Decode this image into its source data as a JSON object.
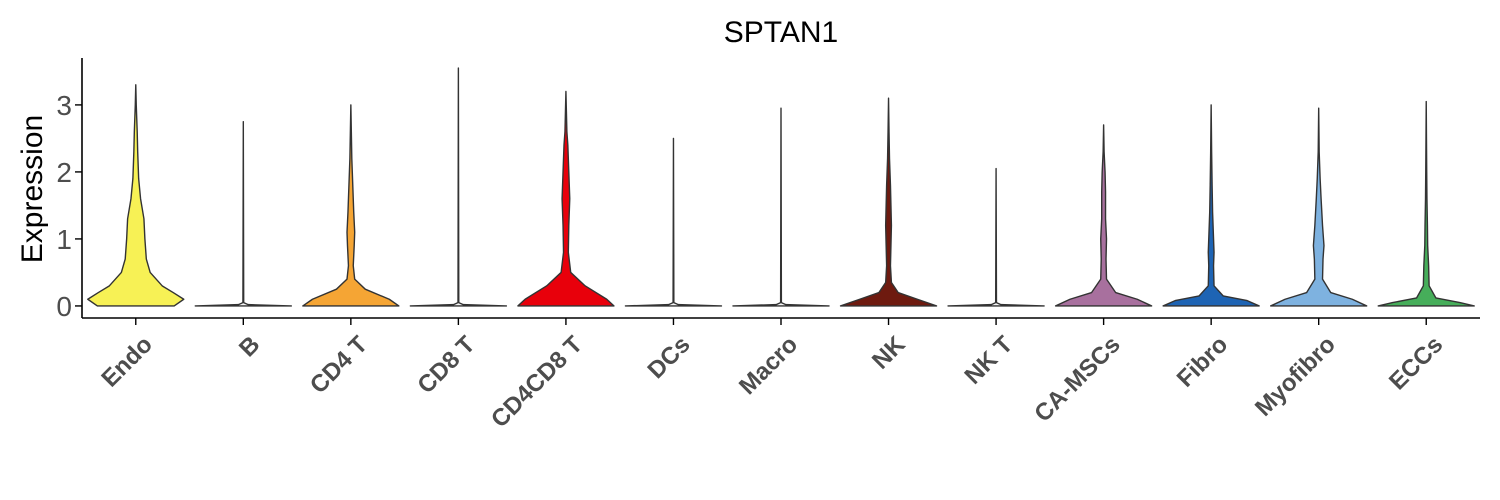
{
  "chart_data": {
    "type": "violin",
    "title": "SPTAN1",
    "xlabel": "",
    "ylabel": "Expression",
    "ylim": [
      -0.18,
      3.7
    ],
    "yticks": [
      0,
      1,
      2,
      3
    ],
    "grid": false,
    "legend": "none",
    "categories": [
      "Endo",
      "B",
      "CD4 T",
      "CD8 T",
      "CD4CD8 T",
      "DCs",
      "Macro",
      "NK",
      "NK T",
      "CA-MSCs",
      "Fibro",
      "Myofibro",
      "ECCs"
    ],
    "colors": [
      "#F7F155",
      "#F4F4F4",
      "#F5A534",
      "#F4F4F4",
      "#E8000B",
      "#F4F4F4",
      "#F4F4F4",
      "#6E1A0F",
      "#F4F4F4",
      "#A8709E",
      "#1E64B4",
      "#7EB2E0",
      "#46AE5A"
    ],
    "series": [
      {
        "category": "Endo",
        "max": 3.3,
        "profile": [
          [
            0,
            0.8
          ],
          [
            0.1,
            1.0
          ],
          [
            0.2,
            0.78
          ],
          [
            0.3,
            0.55
          ],
          [
            0.5,
            0.3
          ],
          [
            0.7,
            0.22
          ],
          [
            1.0,
            0.19
          ],
          [
            1.3,
            0.17
          ],
          [
            1.6,
            0.1
          ],
          [
            1.9,
            0.06
          ],
          [
            2.3,
            0.04
          ],
          [
            2.6,
            0.03
          ],
          [
            2.8,
            0.02
          ],
          [
            3.0,
            0.01
          ],
          [
            3.3,
            0
          ]
        ]
      },
      {
        "category": "B",
        "max": 2.75,
        "profile": [
          [
            0,
            1.0
          ],
          [
            0.02,
            0.1
          ],
          [
            0.05,
            0.008
          ],
          [
            2.75,
            0
          ]
        ]
      },
      {
        "category": "CD4 T",
        "max": 3.0,
        "profile": [
          [
            0,
            1.0
          ],
          [
            0.1,
            0.8
          ],
          [
            0.25,
            0.3
          ],
          [
            0.4,
            0.08
          ],
          [
            0.6,
            0.05
          ],
          [
            0.9,
            0.07
          ],
          [
            1.1,
            0.08
          ],
          [
            1.4,
            0.06
          ],
          [
            1.8,
            0.04
          ],
          [
            2.2,
            0.02
          ],
          [
            2.6,
            0.01
          ],
          [
            3.0,
            0
          ]
        ]
      },
      {
        "category": "CD8 T",
        "max": 3.55,
        "profile": [
          [
            0,
            1.0
          ],
          [
            0.02,
            0.1
          ],
          [
            0.05,
            0.008
          ],
          [
            3.55,
            0
          ]
        ]
      },
      {
        "category": "CD4CD8 T",
        "max": 3.2,
        "profile": [
          [
            0,
            1.0
          ],
          [
            0.1,
            0.85
          ],
          [
            0.3,
            0.4
          ],
          [
            0.5,
            0.1
          ],
          [
            0.8,
            0.05
          ],
          [
            1.2,
            0.06
          ],
          [
            1.6,
            0.08
          ],
          [
            2.0,
            0.06
          ],
          [
            2.4,
            0.04
          ],
          [
            2.6,
            0.02
          ],
          [
            2.9,
            0.01
          ],
          [
            3.2,
            0
          ]
        ]
      },
      {
        "category": "DCs",
        "max": 2.5,
        "profile": [
          [
            0,
            1.0
          ],
          [
            0.02,
            0.1
          ],
          [
            0.05,
            0.008
          ],
          [
            2.5,
            0
          ]
        ]
      },
      {
        "category": "Macro",
        "max": 2.95,
        "profile": [
          [
            0,
            1.0
          ],
          [
            0.02,
            0.1
          ],
          [
            0.05,
            0.008
          ],
          [
            2.95,
            0
          ]
        ]
      },
      {
        "category": "NK",
        "max": 3.1,
        "profile": [
          [
            0,
            1.0
          ],
          [
            0.1,
            0.6
          ],
          [
            0.2,
            0.2
          ],
          [
            0.35,
            0.06
          ],
          [
            0.6,
            0.04
          ],
          [
            0.9,
            0.05
          ],
          [
            1.2,
            0.06
          ],
          [
            1.5,
            0.05
          ],
          [
            1.8,
            0.04
          ],
          [
            2.2,
            0.02
          ],
          [
            2.6,
            0.01
          ],
          [
            3.1,
            0
          ]
        ]
      },
      {
        "category": "NK T",
        "max": 2.05,
        "profile": [
          [
            0,
            1.0
          ],
          [
            0.02,
            0.1
          ],
          [
            0.05,
            0.008
          ],
          [
            2.05,
            0
          ]
        ]
      },
      {
        "category": "CA-MSCs",
        "max": 2.7,
        "profile": [
          [
            0,
            1.0
          ],
          [
            0.1,
            0.7
          ],
          [
            0.2,
            0.25
          ],
          [
            0.4,
            0.06
          ],
          [
            0.7,
            0.05
          ],
          [
            1.0,
            0.06
          ],
          [
            1.3,
            0.04
          ],
          [
            1.7,
            0.04
          ],
          [
            2.0,
            0.03
          ],
          [
            2.3,
            0.01
          ],
          [
            2.7,
            0
          ]
        ]
      },
      {
        "category": "Fibro",
        "max": 3.0,
        "profile": [
          [
            0,
            1.0
          ],
          [
            0.08,
            0.75
          ],
          [
            0.15,
            0.25
          ],
          [
            0.3,
            0.06
          ],
          [
            0.6,
            0.05
          ],
          [
            0.8,
            0.06
          ],
          [
            1.0,
            0.05
          ],
          [
            1.4,
            0.03
          ],
          [
            1.8,
            0.02
          ],
          [
            2.3,
            0.01
          ],
          [
            3.0,
            0
          ]
        ]
      },
      {
        "category": "Myofibro",
        "max": 2.95,
        "profile": [
          [
            0,
            1.0
          ],
          [
            0.1,
            0.7
          ],
          [
            0.2,
            0.25
          ],
          [
            0.4,
            0.08
          ],
          [
            0.7,
            0.09
          ],
          [
            0.9,
            0.11
          ],
          [
            1.2,
            0.08
          ],
          [
            1.6,
            0.05
          ],
          [
            1.9,
            0.03
          ],
          [
            2.3,
            0.01
          ],
          [
            2.95,
            0
          ]
        ]
      },
      {
        "category": "ECCs",
        "max": 3.05,
        "profile": [
          [
            0,
            1.0
          ],
          [
            0.05,
            0.7
          ],
          [
            0.12,
            0.2
          ],
          [
            0.3,
            0.06
          ],
          [
            0.6,
            0.05
          ],
          [
            0.9,
            0.03
          ],
          [
            1.2,
            0.025
          ],
          [
            1.6,
            0.015
          ],
          [
            2.0,
            0.01
          ],
          [
            2.5,
            0.005
          ],
          [
            3.05,
            0
          ]
        ]
      }
    ]
  }
}
